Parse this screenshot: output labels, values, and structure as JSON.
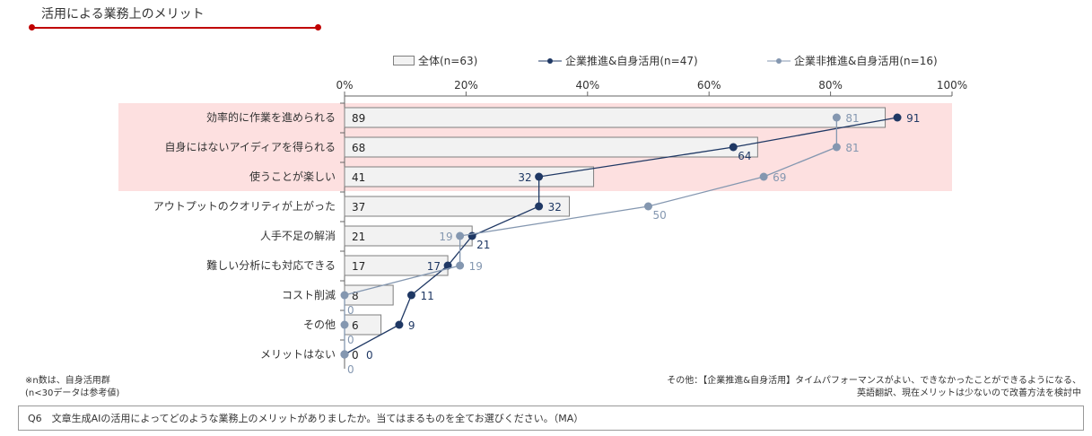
{
  "header": {
    "title": "活用による業務上のメリット"
  },
  "colors": {
    "accent": "#c00000",
    "highlight": "#fde0e0",
    "bar": "#f2f2f2",
    "bar_border": "#7f7f7f",
    "series_dark": "#1f3864",
    "series_light": "#8497b0"
  },
  "chart_data": {
    "type": "bar+line",
    "categories": [
      "効率的に作業を進められる",
      "自身にはないアイディアを得られる",
      "使うことが楽しい",
      "アウトプットのクオリティが上がった",
      "人手不足の解消",
      "難しい分析にも対応できる",
      "コスト削減",
      "その他",
      "メリットはない"
    ],
    "x_ticks": [
      "0%",
      "20%",
      "40%",
      "60%",
      "80%",
      "100%"
    ],
    "xlim": [
      0,
      100
    ],
    "highlighted_categories": [
      0,
      1,
      2
    ],
    "series": [
      {
        "name": "全体(n=63)",
        "type": "bar",
        "values": [
          89,
          68,
          41,
          37,
          21,
          17,
          8,
          6,
          0
        ]
      },
      {
        "name": "企業推進&自身活用(n=47)",
        "type": "line",
        "values": [
          91,
          64,
          32,
          32,
          21,
          17,
          11,
          9,
          0
        ]
      },
      {
        "name": "企業非推進&自身活用(n=16)",
        "type": "line",
        "values": [
          81,
          81,
          69,
          50,
          19,
          19,
          0,
          0,
          0
        ]
      }
    ],
    "legend_position": "top"
  },
  "notes": {
    "n_note_1": "※n数は、自身活用群",
    "n_note_2": "(n<30データは参考値)",
    "other_1": "その他：【企業推進&自身活用】タイムパフォーマンスがよい、できなかったことができるようになる、",
    "other_2": "英語翻訳、現在メリットは少ないので改善方法を検討中"
  },
  "question": "Q6　文章生成AIの活用によってどのような業務上のメリットがありましたか。当てはまるものを全てお選びください。（MA）"
}
